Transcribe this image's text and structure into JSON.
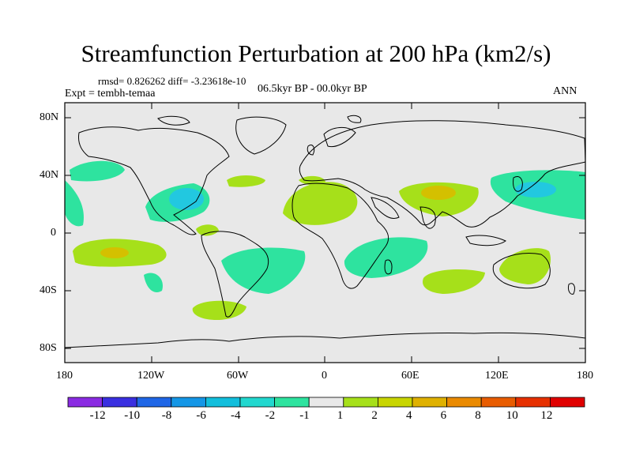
{
  "title": "Streamfunction Perturbation at 200 hPa (km2/s)",
  "stats": "rmsd= 0.826262 diff= -3.23618e-10",
  "experiment": "Expt = tembh-temaa",
  "period": "06.5kyr BP - 00.0kyr BP",
  "season": "ANN",
  "lat_ticks": [
    "80N",
    "40N",
    "0",
    "40S",
    "80S"
  ],
  "lon_ticks": [
    "180",
    "120W",
    "60W",
    "0",
    "60E",
    "120E",
    "180"
  ],
  "colorbar": {
    "labels": [
      "-12",
      "-10",
      "-8",
      "-6",
      "-4",
      "-2",
      "-1",
      "1",
      "2",
      "4",
      "6",
      "8",
      "10",
      "12"
    ],
    "colors": [
      "#8a2be2",
      "#3a2fe0",
      "#1f66e6",
      "#1496e6",
      "#12bedc",
      "#22d8cf",
      "#2ee39f",
      "#e8e8e8",
      "#a6e01a",
      "#c8d500",
      "#dfb100",
      "#ea8a00",
      "#e85c00",
      "#e63000",
      "#e00000"
    ]
  },
  "colors": {
    "ocean_bg": "#e8e8e8",
    "neg_1_2": "#2ee39f",
    "neg_2_4": "#22c8e0",
    "pos_1_2": "#a6e01a",
    "pos_2_4": "#d4c000"
  }
}
